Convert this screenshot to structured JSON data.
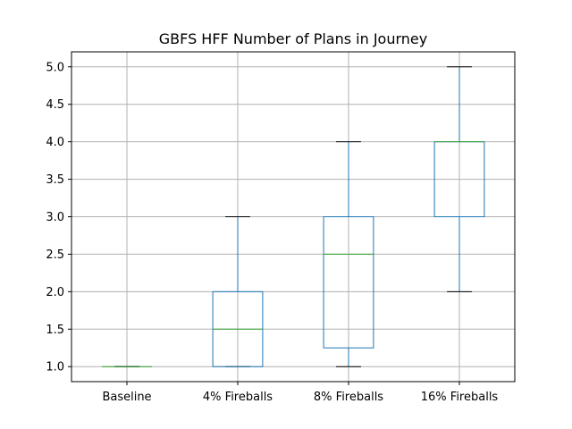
{
  "chart_data": {
    "type": "box",
    "title": "GBFS HFF Number of Plans in Journey",
    "xlabel": "",
    "ylabel": "",
    "categories": [
      "Baseline",
      "4% Fireballs",
      "8% Fireballs",
      "16% Fireballs"
    ],
    "boxes": [
      {
        "min": 1.0,
        "q1": 1.0,
        "median": 1.0,
        "q3": 1.0,
        "max": 1.0
      },
      {
        "min": 1.0,
        "q1": 1.0,
        "median": 1.5,
        "q3": 2.0,
        "max": 3.0
      },
      {
        "min": 1.0,
        "q1": 1.25,
        "median": 2.5,
        "q3": 3.0,
        "max": 4.0
      },
      {
        "min": 2.0,
        "q1": 3.0,
        "median": 4.0,
        "q3": 4.0,
        "max": 5.0
      }
    ],
    "ylim": [
      0.8,
      5.2
    ],
    "yticks": [
      "1.0",
      "1.5",
      "2.0",
      "2.5",
      "3.0",
      "3.5",
      "4.0",
      "4.5",
      "5.0"
    ],
    "grid": true,
    "colors": {
      "box": "#1f77b4",
      "median": "#2ca02c",
      "cap": "#000000",
      "grid": "#b0b0b0"
    }
  }
}
